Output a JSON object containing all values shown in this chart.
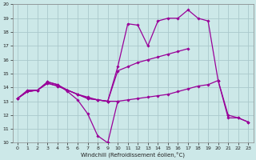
{
  "xlabel": "Windchill (Refroidissement éolien,°C)",
  "xlim": [
    -0.5,
    23.5
  ],
  "ylim": [
    10,
    20
  ],
  "xticks": [
    0,
    1,
    2,
    3,
    4,
    5,
    6,
    7,
    8,
    9,
    10,
    11,
    12,
    13,
    14,
    15,
    16,
    17,
    18,
    19,
    20,
    21,
    22,
    23
  ],
  "yticks": [
    10,
    11,
    12,
    13,
    14,
    15,
    16,
    17,
    18,
    19,
    20
  ],
  "bg_color": "#cce8e8",
  "grid_color": "#aac8cc",
  "line_color": "#990099",
  "series": [
    {
      "x": [
        0,
        1,
        2,
        3,
        4,
        5,
        6,
        7,
        8,
        9,
        10
      ],
      "y": [
        13.2,
        13.8,
        13.8,
        14.4,
        14.2,
        13.7,
        13.1,
        12.1,
        10.5,
        10.0,
        13.0
      ]
    },
    {
      "x": [
        0,
        1,
        2,
        3,
        4,
        5,
        6,
        7,
        8,
        9,
        10,
        11,
        12,
        13,
        14,
        15,
        16,
        17,
        18,
        19,
        20,
        21,
        22,
        23
      ],
      "y": [
        13.2,
        13.7,
        13.8,
        14.4,
        14.2,
        13.8,
        13.5,
        13.3,
        13.1,
        13.0,
        15.5,
        18.6,
        18.5,
        17.0,
        18.8,
        19.0,
        19.0,
        19.6,
        19.0,
        18.8,
        14.5,
        12.0,
        11.8,
        11.5
      ]
    },
    {
      "x": [
        0,
        1,
        2,
        3,
        4,
        5,
        6,
        7,
        8,
        9,
        10,
        11,
        12,
        13,
        14,
        15,
        16,
        17
      ],
      "y": [
        13.2,
        13.7,
        13.8,
        14.3,
        14.1,
        13.8,
        13.5,
        13.2,
        13.1,
        13.0,
        15.2,
        15.5,
        15.8,
        16.0,
        16.2,
        16.4,
        16.6,
        16.8
      ]
    },
    {
      "x": [
        0,
        1,
        2,
        3,
        4,
        5,
        6,
        7,
        8,
        9,
        10,
        11,
        12,
        13,
        14,
        15,
        16,
        17,
        18,
        19,
        20,
        21,
        22,
        23
      ],
      "y": [
        13.2,
        13.7,
        13.8,
        14.3,
        14.1,
        13.8,
        13.5,
        13.2,
        13.1,
        13.0,
        13.0,
        13.1,
        13.2,
        13.3,
        13.4,
        13.5,
        13.7,
        13.9,
        14.1,
        14.2,
        14.5,
        11.8,
        11.8,
        11.5
      ]
    }
  ]
}
